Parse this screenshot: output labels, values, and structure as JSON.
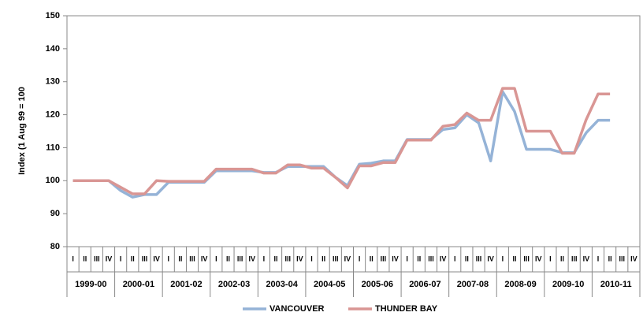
{
  "chart_data": {
    "type": "line",
    "y_label": "Index (1 Aug 99 = 100",
    "categories": [
      "I",
      "II",
      "III",
      "IV",
      "I",
      "II",
      "III",
      "IV",
      "I",
      "II",
      "III",
      "IV",
      "I",
      "II",
      "III",
      "IV",
      "I",
      "II",
      "III",
      "IV",
      "I",
      "II",
      "III",
      "IV",
      "I",
      "II",
      "III",
      "IV",
      "I",
      "II",
      "III",
      "IV",
      "I",
      "II",
      "III",
      "IV",
      "I",
      "II",
      "III",
      "IV",
      "I",
      "II",
      "III",
      "IV",
      "I",
      "II",
      "III",
      "IV"
    ],
    "category_groups": [
      "1999-00",
      "2000-01",
      "2001-02",
      "2002-03",
      "2003-04",
      "2004-05",
      "2005-06",
      "2006-07",
      "2007-08",
      "2008-09",
      "2009-10",
      "2010-11"
    ],
    "series": [
      {
        "name": "VANCOUVER",
        "color": "#95b3d7",
        "values": [
          100,
          100,
          100,
          100,
          97,
          95,
          95.8,
          95.8,
          99.5,
          99.5,
          99.5,
          99.5,
          103,
          103,
          103,
          103,
          102.5,
          102.5,
          104.3,
          104.3,
          104.3,
          104.3,
          101,
          98.5,
          105,
          105.3,
          106,
          106,
          112.5,
          112.5,
          112.5,
          115.5,
          116,
          120,
          117.5,
          106,
          127,
          121,
          109.5,
          109.5,
          109.5,
          108.5,
          108.5,
          114.5,
          118.3,
          118.3,
          null,
          null
        ]
      },
      {
        "name": "THUNDER BAY",
        "color": "#d99694",
        "values": [
          100,
          100,
          100,
          100,
          98,
          96,
          96,
          100,
          99.8,
          99.8,
          99.8,
          99.8,
          103.5,
          103.5,
          103.5,
          103.5,
          102.3,
          102.3,
          104.8,
          104.8,
          103.8,
          103.8,
          101,
          97.8,
          104.5,
          104.5,
          105.5,
          105.5,
          112.3,
          112.3,
          112.3,
          116.5,
          117,
          120.5,
          118.3,
          118.3,
          128,
          128,
          115,
          115,
          115,
          108.3,
          108.3,
          118.5,
          126.3,
          126.3,
          null,
          null
        ]
      }
    ],
    "ylim": [
      80,
      150
    ],
    "yticks": [
      80,
      90,
      100,
      110,
      120,
      130,
      140,
      150
    ],
    "grid": false,
    "legend": "bottom"
  }
}
